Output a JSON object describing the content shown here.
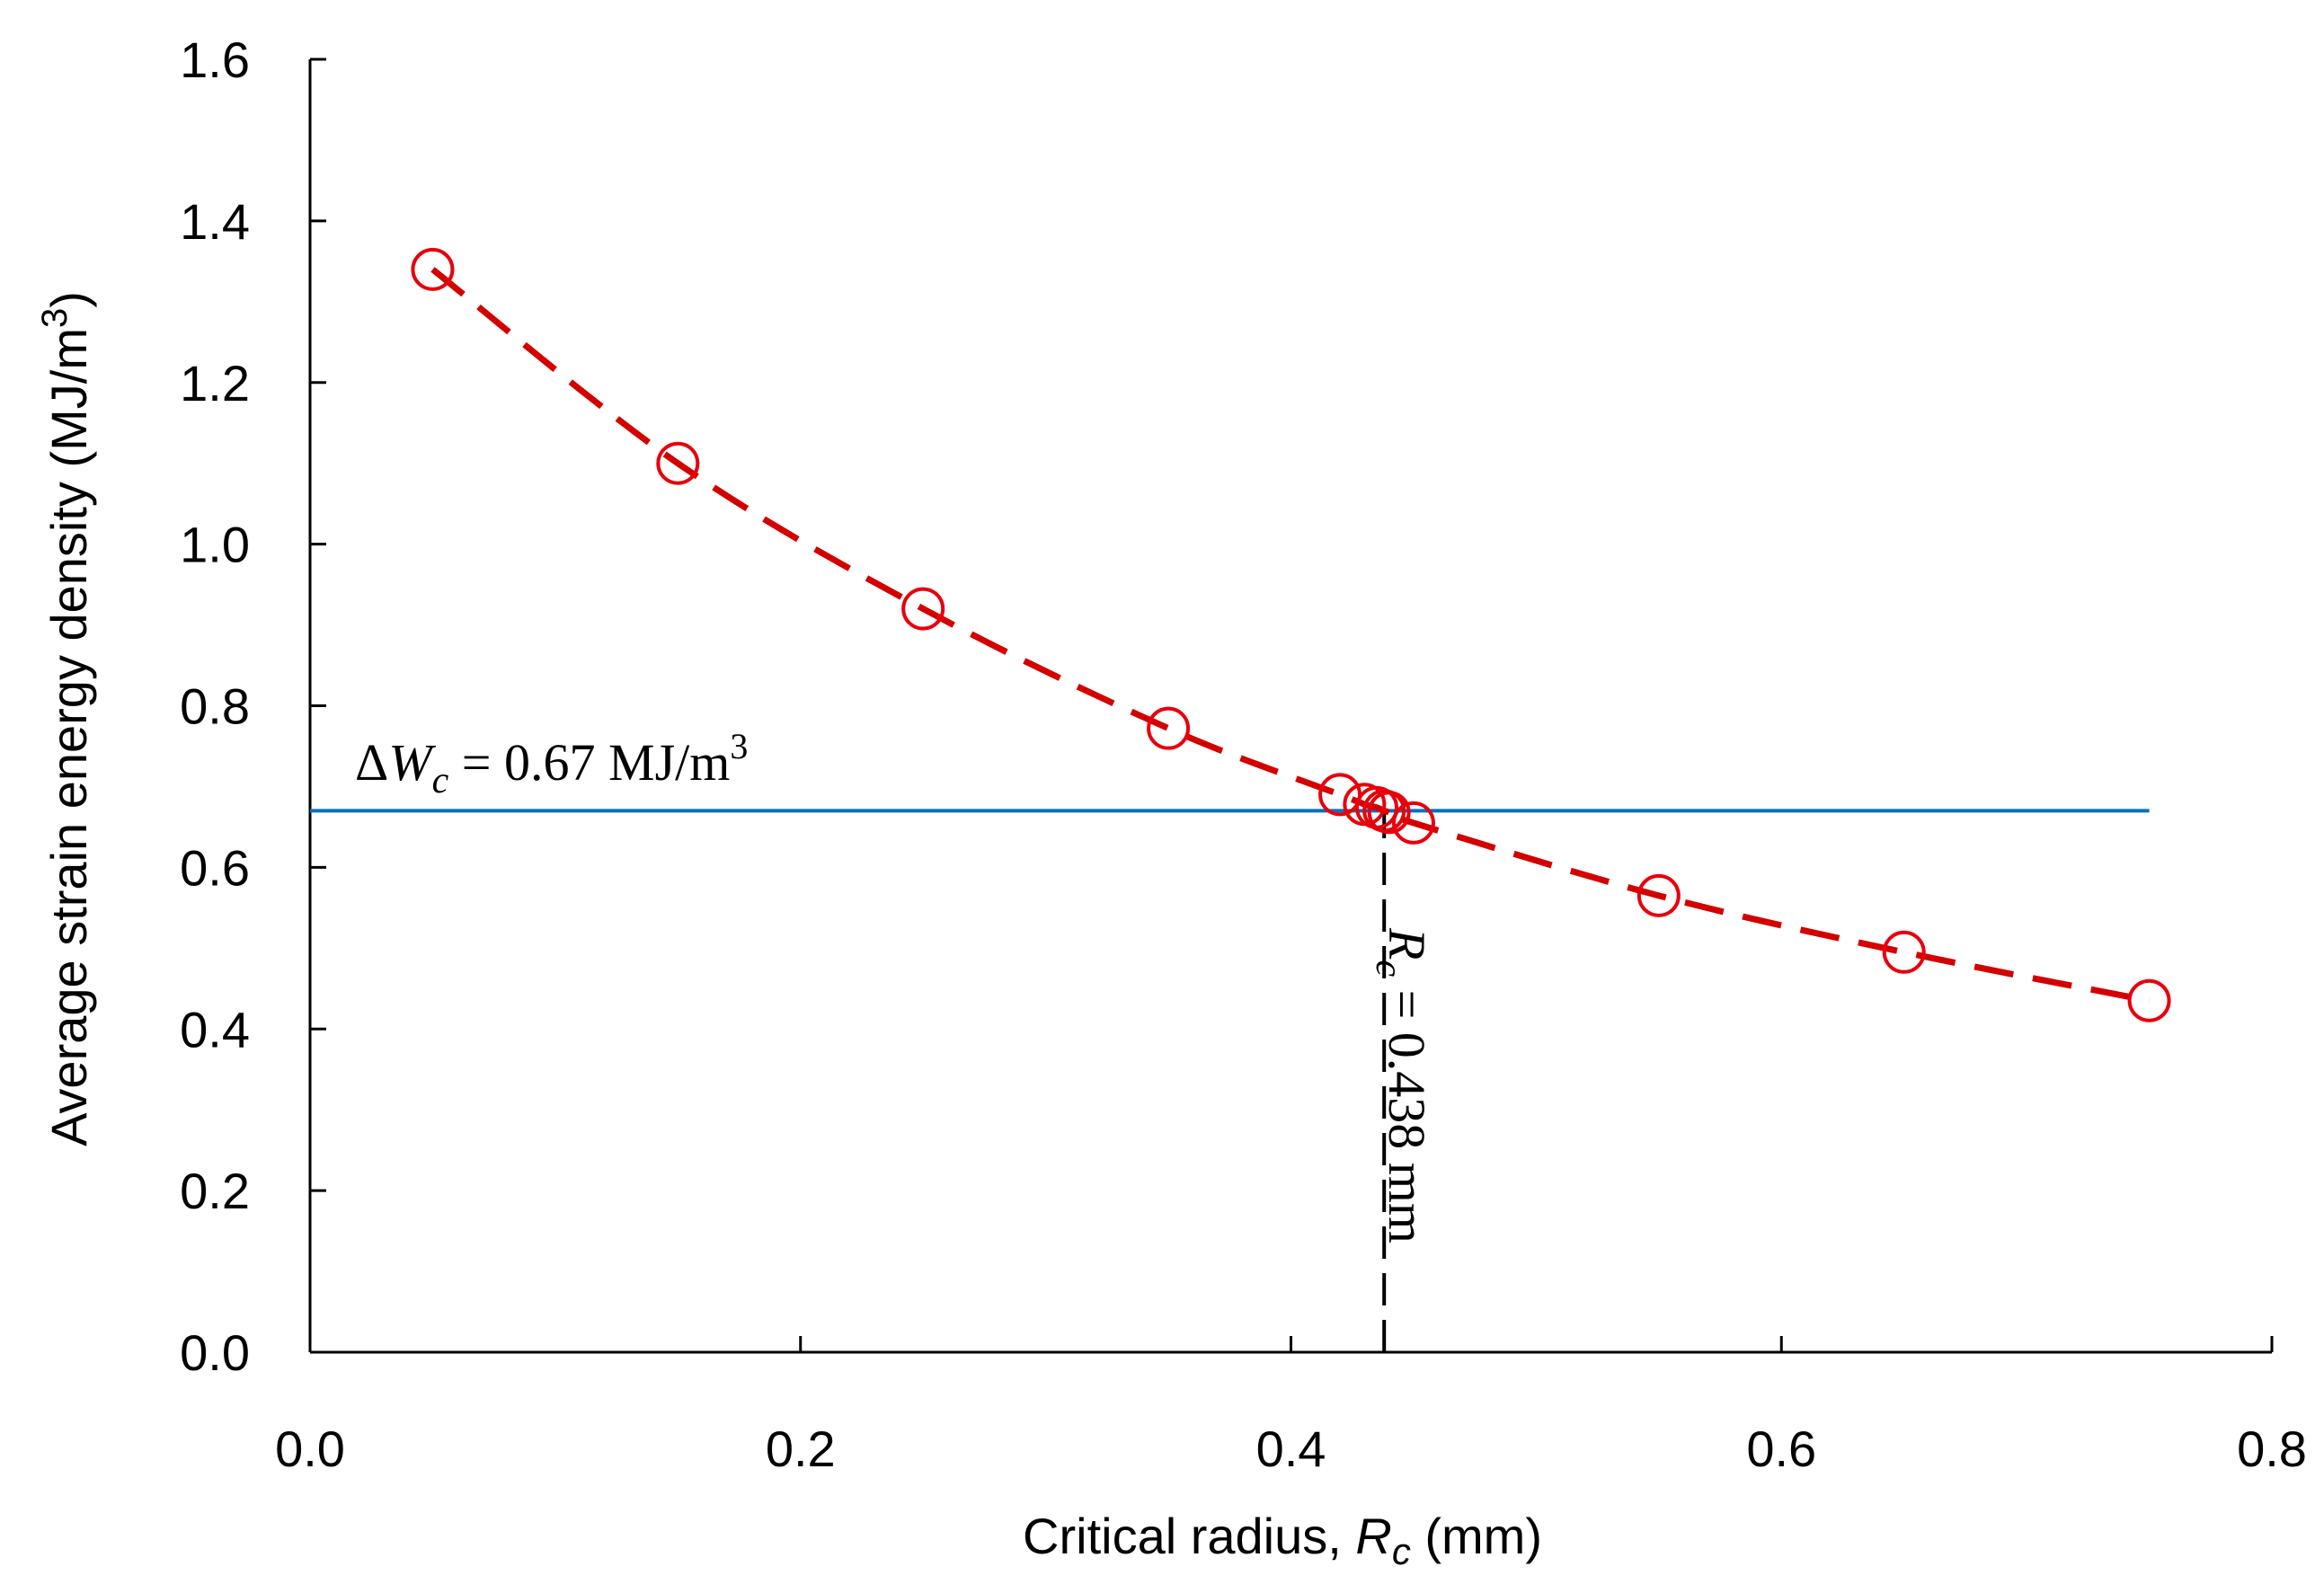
{
  "chart_data": {
    "type": "scatter",
    "title": "",
    "xlabel": {
      "prefix": "Critical radius, ",
      "symbol": "R",
      "subscript": "c",
      "suffix": " (mm)"
    },
    "ylabel": {
      "text": "Average strain energy density (MJ/m",
      "superscript": "3",
      "suffix": ")"
    },
    "xlim": [
      0,
      0.8
    ],
    "ylim": [
      0,
      1.6
    ],
    "xticks": [
      0.0,
      0.2,
      0.4,
      0.6,
      0.8
    ],
    "xtick_labels": [
      "0.0",
      "0.2",
      "0.4",
      "0.6",
      "0.8"
    ],
    "yticks": [
      0.0,
      0.2,
      0.4,
      0.6,
      0.8,
      1.0,
      1.2,
      1.4,
      1.6
    ],
    "ytick_labels": [
      "0.0",
      "0.2",
      "0.4",
      "0.6",
      "0.8",
      "1.0",
      "1.2",
      "1.4",
      "1.6"
    ],
    "grid": false,
    "series": [
      {
        "name": "Average strain energy density",
        "marker": "open-circle",
        "line": "dashed",
        "color": "#e8000b",
        "x": [
          0.05,
          0.15,
          0.25,
          0.35,
          0.42,
          0.43,
          0.435,
          0.438,
          0.44,
          0.45,
          0.55,
          0.65,
          0.75
        ],
        "y": [
          1.34,
          1.1,
          0.92,
          0.772,
          0.69,
          0.678,
          0.674,
          0.67,
          0.668,
          0.655,
          0.565,
          0.495,
          0.435
        ]
      }
    ],
    "reference_lines": {
      "horizontal": {
        "y": 0.67,
        "x_range": [
          0,
          0.75
        ],
        "color": "#0070c0",
        "label_parts": {
          "delta": "Δ",
          "symbol": "W",
          "subscript": "c",
          "equals": " = 0.67 MJ/m",
          "superscript": "3"
        }
      },
      "vertical": {
        "x": 0.438,
        "y_range": [
          0,
          0.67
        ],
        "color": "#000000",
        "label_parts": {
          "symbol": "R",
          "subscript": "c",
          "equals": " = 0.438 mm"
        }
      }
    }
  }
}
